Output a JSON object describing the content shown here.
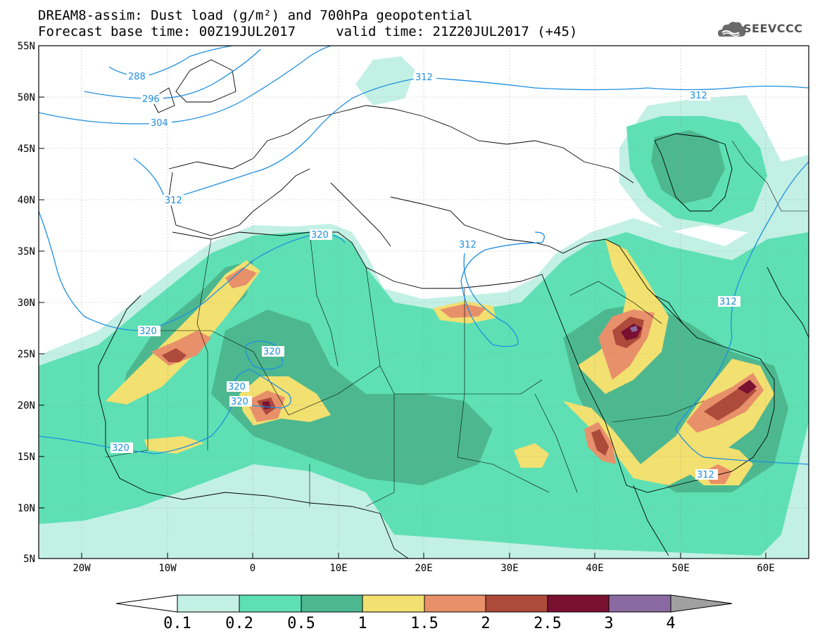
{
  "title": {
    "line1": "DREAM8-assim: Dust load (g/m²) and 700hPa geopotential",
    "line2": "Forecast base time: 00Z19JUL2017     valid time: 21Z20JUL2017 (+45)"
  },
  "logo": {
    "text": "SEEVCCC",
    "icon": "cloud-icon"
  },
  "map": {
    "lon_range": [
      -25,
      65
    ],
    "lat_range": [
      5,
      55
    ],
    "lon_ticks": [
      "20W",
      "10W",
      "0",
      "10E",
      "20E",
      "30E",
      "40E",
      "50E",
      "60E"
    ],
    "lat_ticks": [
      "55N",
      "50N",
      "45N",
      "40N",
      "35N",
      "30N",
      "25N",
      "20N",
      "15N",
      "10N",
      "5N"
    ],
    "geopotential_labels": [
      "288",
      "296",
      "304",
      "312",
      "312",
      "312",
      "312",
      "320",
      "320",
      "320",
      "320",
      "320",
      "320",
      "312",
      "312"
    ],
    "contour_color": "#1e8fe0"
  },
  "colorbar": {
    "levels": [
      "0.1",
      "0.2",
      "0.5",
      "1",
      "1.5",
      "2",
      "2.5",
      "3",
      "4"
    ],
    "colors": [
      "#c3f0e4",
      "#5ee0b4",
      "#4db890",
      "#f2e070",
      "#e8906a",
      "#ad4a3a",
      "#7a1030",
      "#8a6aa0"
    ],
    "under_color": "#ffffff",
    "over_color": "#a0a0a0"
  }
}
